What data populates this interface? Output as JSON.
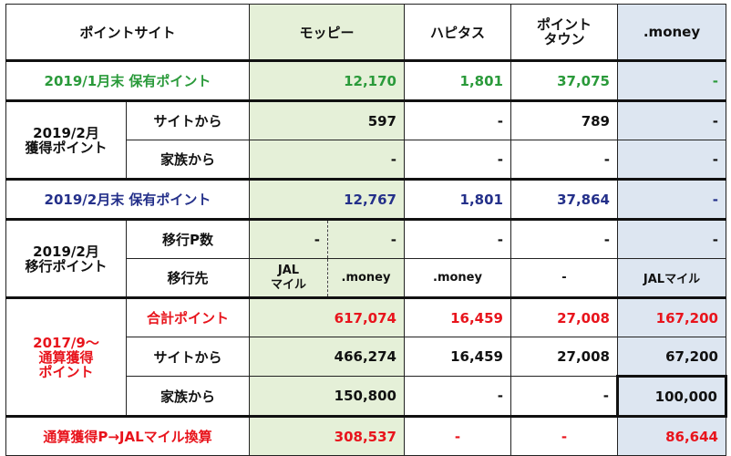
{
  "header": {
    "label": "ポイントサイト",
    "moppy": "モッピー",
    "hapitas": "ハピタス",
    "pointtown_l1": "ポイント",
    "pointtown_l2": "タウン",
    "money": ".money"
  },
  "jan": {
    "label": "2019/1月末 保有ポイント",
    "moppy": "12,170",
    "hapitas": "1,801",
    "pointtown": "37,075",
    "money": "-"
  },
  "feb_earned": {
    "label_l1": "2019/2月",
    "label_l2": "獲得ポイント",
    "site": {
      "label": "サイトから",
      "moppy": "597",
      "hapitas": "-",
      "pointtown": "789",
      "money": "-"
    },
    "family": {
      "label": "家族から",
      "moppy": "-",
      "hapitas": "-",
      "pointtown": "-",
      "money": "-"
    }
  },
  "feb_held": {
    "label": "2019/2月末 保有ポイント",
    "moppy": "12,767",
    "hapitas": "1,801",
    "pointtown": "37,864",
    "money": "-"
  },
  "feb_transfer": {
    "label_l1": "2019/2月",
    "label_l2": "移行ポイント",
    "count": {
      "label": "移行P数",
      "moppy_a": "-",
      "moppy_b": "-",
      "hapitas": "-",
      "pointtown": "-",
      "money": "-"
    },
    "dest": {
      "label": "移行先",
      "moppy_a_l1": "JAL",
      "moppy_a_l2": "マイル",
      "moppy_b": ".money",
      "hapitas": ".money",
      "pointtown": "-",
      "money": "JALマイル"
    }
  },
  "cumulative": {
    "label_l1": "2017/9～",
    "label_l2": "通算獲得",
    "label_l3": "ポイント",
    "total": {
      "label": "合計ポイント",
      "moppy": "617,074",
      "hapitas": "16,459",
      "pointtown": "27,008",
      "money": "167,200"
    },
    "site": {
      "label": "サイトから",
      "moppy": "466,274",
      "hapitas": "16,459",
      "pointtown": "27,008",
      "money": "67,200"
    },
    "family": {
      "label": "家族から",
      "moppy": "150,800",
      "hapitas": "-",
      "pointtown": "-",
      "money": "100,000"
    }
  },
  "conversion": {
    "label": "通算獲得P→JALマイル換算",
    "moppy": "308,537",
    "hapitas": "-",
    "pointtown": "-",
    "money": "86,644"
  },
  "colors": {
    "green": "#2a9a3a",
    "navy": "#24308a",
    "red": "#e8141c",
    "moppy_bg": "#e5f0d8",
    "money_bg": "#dde6f1"
  }
}
